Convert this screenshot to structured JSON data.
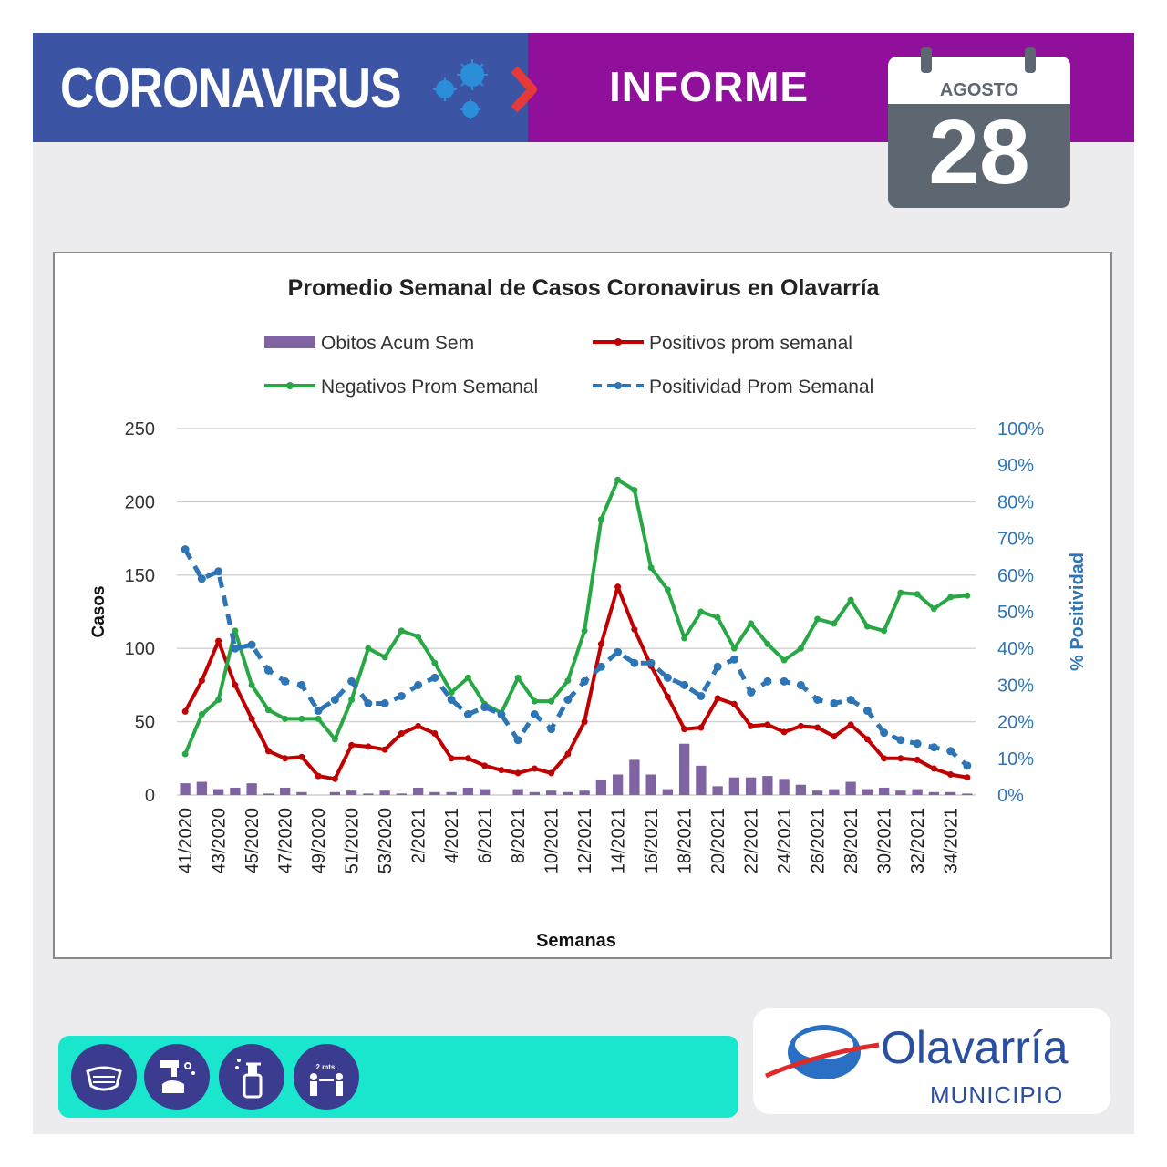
{
  "header": {
    "title": "CORONAVIRUS",
    "report": "INFORME",
    "month": "AGOSTO",
    "day": "28",
    "colors": {
      "left": "#3b55a4",
      "right": "#90109c",
      "accent_arrow": "#e63a3a"
    }
  },
  "prevention_icons": [
    "face-mask-icon",
    "hand-washing-icon",
    "sanitizer-spray-icon",
    "social-distance-icon"
  ],
  "distance_label": "2 mts.",
  "logo": {
    "name": "Olavarría",
    "sub": "MUNICIPIO"
  },
  "chart_data": {
    "type": "combo",
    "title": "Promedio Semanal de Casos Coronavirus en Olavarría",
    "xlabel": "Semanas",
    "ylabel": "Casos",
    "y2label": "% Positividad",
    "ylim": [
      0,
      250
    ],
    "y2lim": [
      0,
      1
    ],
    "yticks": [
      "0",
      "50",
      "100",
      "150",
      "200",
      "250"
    ],
    "y2ticks": [
      "0%",
      "10%",
      "20%",
      "30%",
      "40%",
      "50%",
      "60%",
      "70%",
      "80%",
      "90%",
      "100%"
    ],
    "grid": true,
    "legend_position": "top",
    "x_tick_labels": [
      "41/2020",
      "43/2020",
      "45/2020",
      "47/2020",
      "49/2020",
      "51/2020",
      "53/2020",
      "2/2021",
      "4/2021",
      "6/2021",
      "8/2021",
      "10/2021",
      "12/2021",
      "14/2021",
      "16/2021",
      "18/2021",
      "20/2021",
      "22/2021",
      "24/2021",
      "26/2021",
      "28/2021",
      "30/2021",
      "32/2021",
      "34/2021"
    ],
    "x_start": "41/2020",
    "x_end": "34/2021",
    "series": [
      {
        "name": "Obitos Acum Sem",
        "kind": "bar",
        "color": "#8064a2",
        "axis": "left",
        "values": [
          8,
          9,
          4,
          5,
          8,
          1,
          5,
          2,
          0,
          2,
          3,
          1,
          3,
          1,
          5,
          2,
          2,
          5,
          4,
          0,
          4,
          2,
          3,
          2,
          3,
          10,
          14,
          24,
          14,
          4,
          35,
          20,
          6,
          12,
          12,
          13,
          11,
          7,
          3,
          4,
          9,
          4,
          5,
          3,
          4,
          2,
          2,
          1
        ]
      },
      {
        "name": "Positivos prom semanal",
        "kind": "line",
        "color": "#c00000",
        "axis": "left",
        "values": [
          57,
          78,
          105,
          75,
          52,
          30,
          25,
          26,
          13,
          11,
          34,
          33,
          31,
          42,
          47,
          42,
          25,
          25,
          20,
          17,
          15,
          18,
          15,
          28,
          50,
          103,
          142,
          113,
          88,
          67,
          45,
          46,
          66,
          62,
          47,
          48,
          43,
          47,
          46,
          40,
          48,
          38,
          25,
          25,
          24,
          18,
          14,
          12
        ]
      },
      {
        "name": "Negativos Prom Semanal",
        "kind": "line",
        "color": "#27a844",
        "axis": "left",
        "values": [
          28,
          55,
          65,
          112,
          75,
          58,
          52,
          52,
          52,
          38,
          65,
          100,
          94,
          112,
          108,
          90,
          70,
          80,
          62,
          56,
          80,
          64,
          64,
          78,
          112,
          188,
          215,
          208,
          155,
          140,
          107,
          125,
          121,
          100,
          117,
          103,
          92,
          100,
          120,
          117,
          133,
          115,
          112,
          138,
          137,
          127,
          135,
          136
        ]
      },
      {
        "name": "Positividad Prom Semanal",
        "kind": "line",
        "dash": true,
        "color": "#2e75b6",
        "axis": "right",
        "values": [
          0.67,
          0.59,
          0.61,
          0.4,
          0.41,
          0.34,
          0.31,
          0.3,
          0.23,
          0.26,
          0.31,
          0.25,
          0.25,
          0.27,
          0.3,
          0.32,
          0.26,
          0.22,
          0.24,
          0.22,
          0.15,
          0.22,
          0.18,
          0.26,
          0.31,
          0.35,
          0.39,
          0.36,
          0.36,
          0.32,
          0.3,
          0.27,
          0.35,
          0.37,
          0.28,
          0.31,
          0.31,
          0.3,
          0.26,
          0.25,
          0.26,
          0.23,
          0.17,
          0.15,
          0.14,
          0.13,
          0.12,
          0.08
        ]
      }
    ]
  }
}
